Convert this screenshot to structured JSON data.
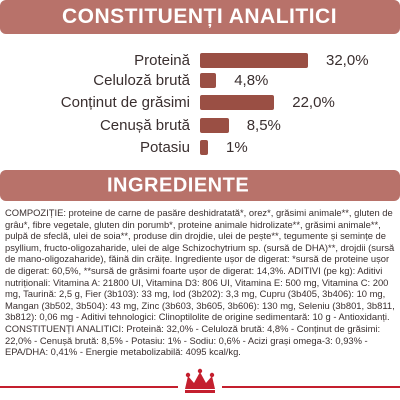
{
  "analytical": {
    "title": "CONSTITUENȚI ANALITICI",
    "rows": [
      {
        "label": "Proteină",
        "value": "32,0%",
        "pct": 32.0
      },
      {
        "label": "Celuloză brută",
        "value": "4,8%",
        "pct": 4.8
      },
      {
        "label": "Conținut de grăsimi",
        "value": "22,0%",
        "pct": 22.0
      },
      {
        "label": "Cenușă brută",
        "value": "8,5%",
        "pct": 8.5
      },
      {
        "label": "Potasiu",
        "value": "1%",
        "pct": 1.0
      }
    ]
  },
  "ingredients": {
    "title": "INGREDIENTE",
    "text": "COMPOZIȚIE: proteine de carne de pasăre deshidratată*, orez*, grăsimi animale**, gluten de grâu*, fibre vegetale, gluten din porumb*, proteine animale hidrolizate**, grăsimi animale**, pulpă de sfeclă, ulei de soia**, produse din drojdie, ulei de pește**, tegumente și semințe de psyllium, fructo-oligozaharide, ulei de alge Schizochytrium sp. (sursă de DHA)**, drojdii (sursă de mano-oligozaharide), făină din crăițe. Ingrediente ușor de digerat: *sursă de proteine ușor de digerat: 60,5%, **sursă de grăsimi foarte ușor de digerat: 14,3%. ADITIVI (pe kg): Aditivi nutriționali: Vitamina A: 21800 UI, Vitamina D3: 806 UI, Vitamina E: 500 mg, Vitamina C: 200 mg, Taurină: 2,5 g, Fier (3b103): 33 mg, Iod (3b202): 3,3 mg, Cupru (3b405, 3b406): 10 mg, Mangan (3b502, 3b504): 43 mg, Zinc (3b603, 3b605, 3b606): 130 mg, Seleniu (3b801, 3b811, 3b812): 0,06 mg - Aditivi tehnologici: Clinoptilolite de origine sedimentară: 10 g - Antioxidanți. CONSTITUENȚI ANALITICI: Proteină: 32,0% - Celuloză brută: 4,8% - Conținut de grăsimi: 22,0% - Cenușă brută: 8,5% - Potasiu: 1% - Sodiu: 0,6% - Acizi grași omega-3: 0,93% - EPA/DHA: 0,41% - Energie metabolizabilă: 4095 kcal/kg."
  },
  "colors": {
    "banner": "#b8726a",
    "bar": "#9a4f44",
    "accent": "#c41f2e"
  },
  "icons": {
    "logo": "royal-canin-crown-icon"
  }
}
